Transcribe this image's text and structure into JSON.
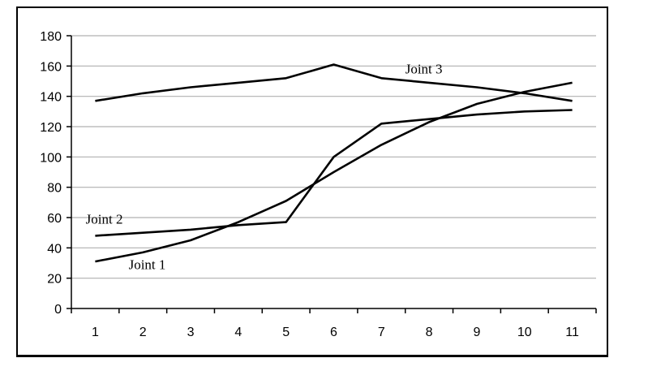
{
  "chart_data": {
    "type": "line",
    "title": "",
    "xlabel": "",
    "ylabel": "",
    "x": [
      1,
      2,
      3,
      4,
      5,
      6,
      7,
      8,
      9,
      10,
      11
    ],
    "xticks": [
      "1",
      "2",
      "3",
      "4",
      "5",
      "6",
      "7",
      "8",
      "9",
      "10",
      "11"
    ],
    "ylim": [
      0,
      180
    ],
    "yticks": [
      "0",
      "20",
      "40",
      "60",
      "80",
      "100",
      "120",
      "140",
      "160",
      "180"
    ],
    "grid": true,
    "legend": "none",
    "line_color": "#000000",
    "grid_color": "#b0b0b0",
    "series": [
      {
        "name": "Joint 1",
        "values": [
          31,
          37,
          45,
          57,
          71,
          90,
          108,
          123,
          135,
          143,
          149
        ]
      },
      {
        "name": "Joint 2",
        "values": [
          48,
          50,
          52,
          55,
          57,
          100,
          122,
          125,
          128,
          130,
          131
        ]
      },
      {
        "name": "Joint 3",
        "values": [
          137,
          142,
          146,
          149,
          152,
          161,
          152,
          149,
          146,
          142,
          137
        ]
      }
    ]
  }
}
